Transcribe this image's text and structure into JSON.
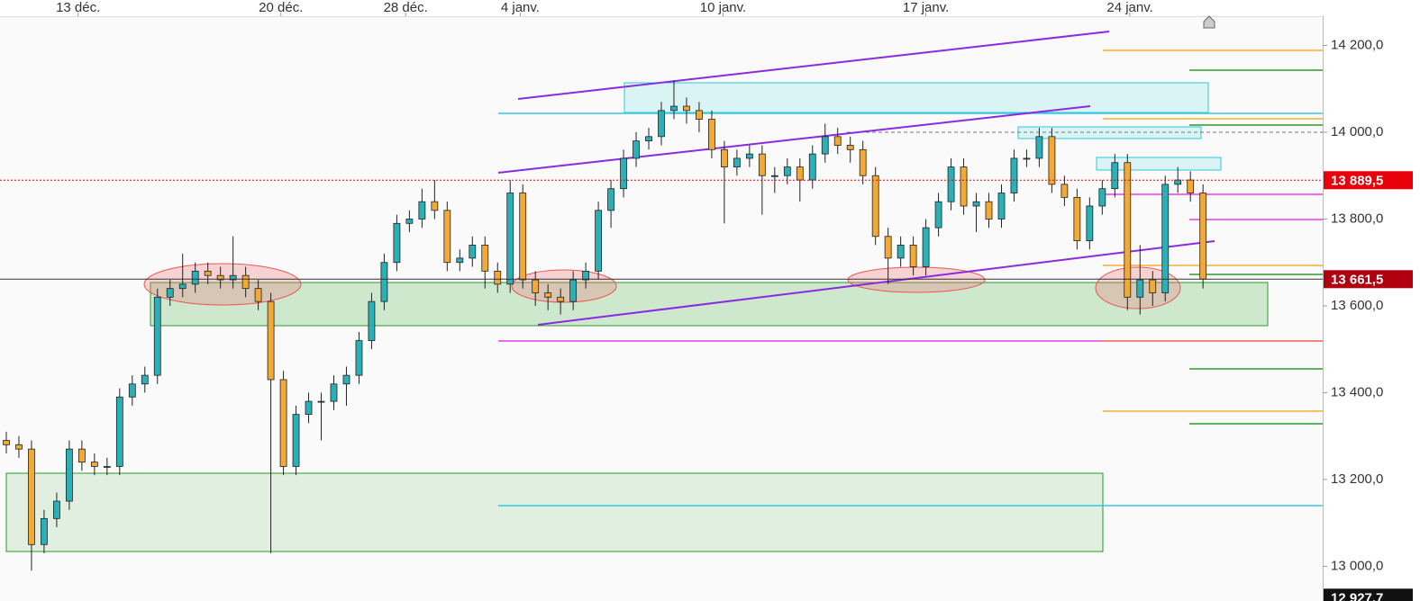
{
  "chart_data": {
    "type": "candlestick",
    "open": [
      13290,
      13280,
      13270,
      13050,
      13110,
      13150,
      13270,
      13240,
      13230,
      13230,
      13390,
      13420,
      13440,
      13620,
      13640,
      13650,
      13680,
      13670,
      13660,
      13670,
      13640,
      13610,
      13430,
      13230,
      13350,
      13380,
      13380,
      13420,
      13440,
      13520,
      13610,
      13700,
      13790,
      13800,
      13840,
      13820,
      13700,
      13710,
      13740,
      13680,
      13650,
      13860,
      13660,
      13630,
      13620,
      13610,
      13660,
      13680,
      13820,
      13870,
      13940,
      13980,
      13990,
      14050,
      14060,
      14050,
      14030,
      13960,
      13920,
      13940,
      13950,
      13900,
      13900,
      13920,
      13890,
      13950,
      13990,
      13970,
      13960,
      13900,
      13760,
      13710,
      13740,
      13690,
      13780,
      13840,
      13920,
      13830,
      13840,
      13800,
      13860,
      13940,
      13940,
      13990,
      13880,
      13850,
      13750,
      13830,
      13870,
      13930,
      13620,
      13660,
      13630,
      13880,
      13890,
      13860
    ],
    "high": [
      13310,
      13300,
      13290,
      13130,
      13170,
      13290,
      13290,
      13260,
      13250,
      13410,
      13440,
      13460,
      13640,
      13660,
      13720,
      13700,
      13700,
      13690,
      13760,
      13690,
      13660,
      13630,
      13450,
      13370,
      13400,
      13400,
      13440,
      13460,
      13540,
      13630,
      13720,
      13810,
      13820,
      13870,
      13890,
      13840,
      13730,
      13760,
      13760,
      13700,
      13890,
      13880,
      13680,
      13650,
      13640,
      13680,
      13700,
      13840,
      13890,
      13960,
      14000,
      14010,
      14070,
      14120,
      14080,
      14070,
      14050,
      13980,
      13960,
      13970,
      13970,
      13920,
      13940,
      13940,
      13970,
      14020,
      14010,
      13990,
      13980,
      13920,
      13780,
      13760,
      13760,
      13800,
      13860,
      13940,
      13940,
      13860,
      13860,
      13880,
      13960,
      13960,
      14010,
      14010,
      13900,
      13870,
      13850,
      13890,
      13950,
      13950,
      13740,
      13680,
      13900,
      13920,
      13910,
      13880
    ],
    "low": [
      13260,
      13250,
      12990,
      13030,
      13090,
      13130,
      13220,
      13210,
      13210,
      13210,
      13370,
      13400,
      13420,
      13600,
      13620,
      13630,
      13650,
      13640,
      13640,
      13620,
      13590,
      13030,
      13210,
      13210,
      13330,
      13290,
      13360,
      13370,
      13420,
      13500,
      13590,
      13680,
      13770,
      13780,
      13800,
      13680,
      13680,
      13690,
      13640,
      13630,
      13630,
      13640,
      13600,
      13590,
      13580,
      13590,
      13640,
      13660,
      13780,
      13850,
      13920,
      13960,
      13970,
      14030,
      14020,
      14000,
      13940,
      13790,
      13900,
      13920,
      13810,
      13860,
      13880,
      13840,
      13870,
      13930,
      13950,
      13930,
      13880,
      13740,
      13650,
      13690,
      13670,
      13670,
      13760,
      13820,
      13810,
      13770,
      13780,
      13780,
      13840,
      13920,
      13920,
      13860,
      13830,
      13730,
      13730,
      13810,
      13850,
      13590,
      13580,
      13600,
      13610,
      13860,
      13840,
      13640
    ],
    "close": [
      13280,
      13270,
      13050,
      13110,
      13150,
      13270,
      13240,
      13230,
      13230,
      13390,
      13420,
      13440,
      13620,
      13640,
      13650,
      13680,
      13670,
      13660,
      13670,
      13640,
      13610,
      13430,
      13230,
      13350,
      13380,
      13380,
      13420,
      13440,
      13520,
      13610,
      13700,
      13790,
      13800,
      13840,
      13820,
      13700,
      13710,
      13740,
      13680,
      13650,
      13860,
      13660,
      13630,
      13620,
      13610,
      13660,
      13680,
      13820,
      13870,
      13940,
      13980,
      13990,
      14050,
      14060,
      14050,
      14030,
      13960,
      13920,
      13940,
      13950,
      13900,
      13900,
      13920,
      13890,
      13950,
      13990,
      13970,
      13960,
      13900,
      13760,
      13710,
      13740,
      13690,
      13780,
      13840,
      13920,
      13830,
      13840,
      13800,
      13860,
      13940,
      13940,
      13990,
      13880,
      13850,
      13750,
      13830,
      13870,
      13930,
      13620,
      13660,
      13630,
      13880,
      13890,
      13860,
      13661.5
    ],
    "up_color": "#2bb0b8",
    "down_color": "#f3a935",
    "xlim": [
      -0.5,
      104.5
    ],
    "xticks": [
      {
        "value": 5.7,
        "label": "13 déc."
      },
      {
        "value": 21.8,
        "label": "20 déc."
      },
      {
        "value": 31.7,
        "label": "28 déc."
      },
      {
        "value": 40.8,
        "label": "4 janv."
      },
      {
        "value": 56.9,
        "label": "10 janv."
      },
      {
        "value": 73.0,
        "label": "17 janv."
      },
      {
        "value": 89.2,
        "label": "24 janv."
      }
    ],
    "ylim": [
      12920.0,
      14304.7
    ],
    "yticks": [
      {
        "value": 13000,
        "label": "13 000,0"
      },
      {
        "value": 13200,
        "label": "13 200,0"
      },
      {
        "value": 13400,
        "label": "13 400,0"
      },
      {
        "value": 13600,
        "label": "13 600,0"
      },
      {
        "value": 13800,
        "label": "13 800,0"
      },
      {
        "value": 14000,
        "label": "14 000,0"
      },
      {
        "value": 14200,
        "label": "14 200,0"
      }
    ],
    "price_tags": [
      {
        "value": 13889.5,
        "label": "13 889,5",
        "color": "#e8000b",
        "line": "dotted"
      },
      {
        "value": 13661.5,
        "label": "13 661,5",
        "color": "#b00010",
        "line": "solid"
      },
      {
        "value": 12927.7,
        "label": "12 927,7",
        "color": "#111111",
        "line": "none"
      }
    ]
  }
}
